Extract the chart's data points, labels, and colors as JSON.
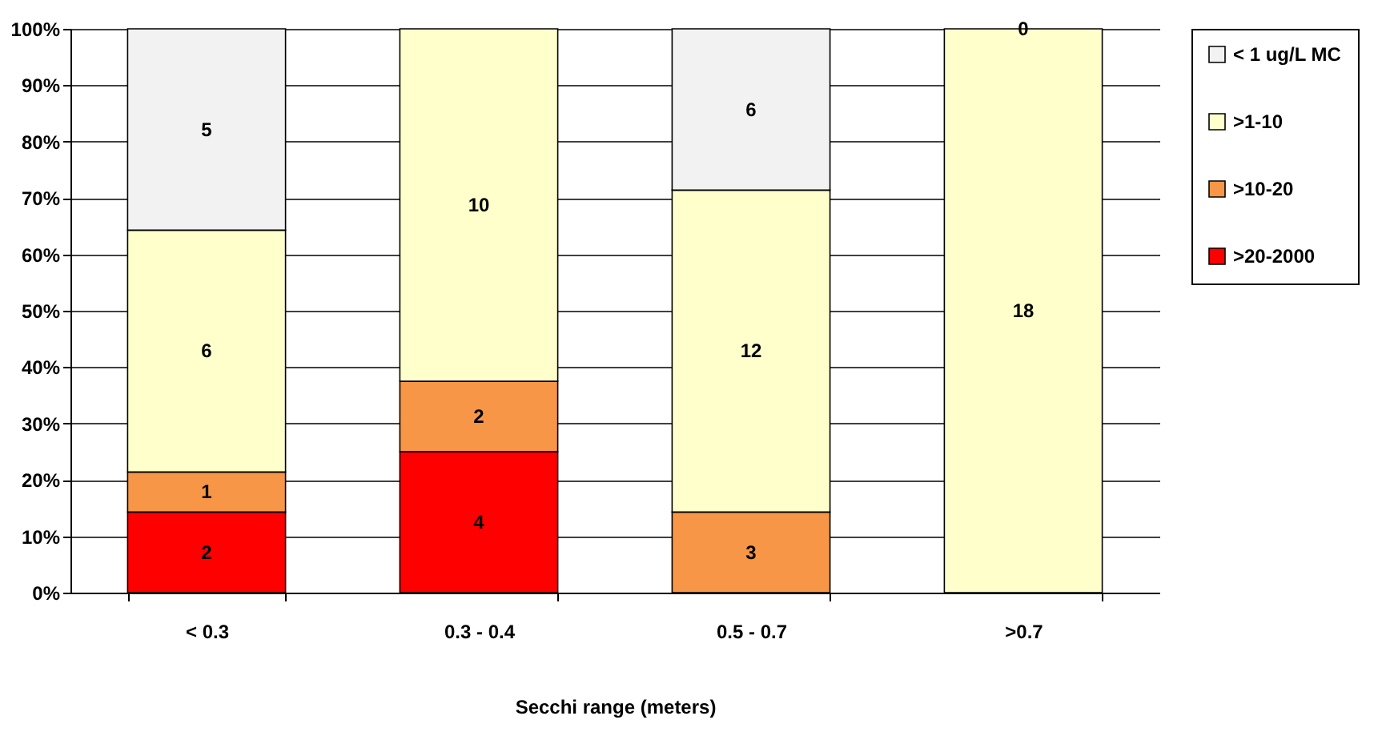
{
  "chart_data": {
    "type": "bar",
    "stacked": true,
    "xlabel": "Secchi range (meters)",
    "categories": [
      "< 0.3",
      "0.3 - 0.4",
      "0.5 - 0.7",
      ">0.7"
    ],
    "series": [
      {
        "name": ">20-2000",
        "color": "#ff0000",
        "values": [
          14.3,
          25,
          null,
          null
        ]
      },
      {
        "name": ">10-20",
        "color": "#f79646",
        "values": [
          7.1,
          12.5,
          14.3,
          null
        ]
      },
      {
        "name": ">1-10",
        "color": "#ffffcc",
        "values": [
          42.9,
          62.5,
          57.1,
          100
        ]
      },
      {
        "name": "< 1 ug/L MC",
        "color": "#f2f2f2",
        "values": [
          35.7,
          null,
          28.6,
          0
        ]
      }
    ],
    "annotations": [
      "2",
      "1",
      "6",
      "5",
      "4",
      "2",
      "10",
      "3",
      "12",
      "6",
      "18",
      "0"
    ],
    "ylim": [
      0,
      100
    ],
    "yticks": [
      {
        "value": 0,
        "label": "0%"
      },
      {
        "value": 10,
        "label": "10%"
      },
      {
        "value": 20,
        "label": "20%"
      },
      {
        "value": 30,
        "label": "30%"
      },
      {
        "value": 40,
        "label": "40%"
      },
      {
        "value": 50,
        "label": "50%"
      },
      {
        "value": 60,
        "label": "60%"
      },
      {
        "value": 70,
        "label": "70%"
      },
      {
        "value": 80,
        "label": "80%"
      },
      {
        "value": 90,
        "label": "90%"
      },
      {
        "value": 100,
        "label": "100%"
      }
    ],
    "grid": "y",
    "legend": "right"
  }
}
